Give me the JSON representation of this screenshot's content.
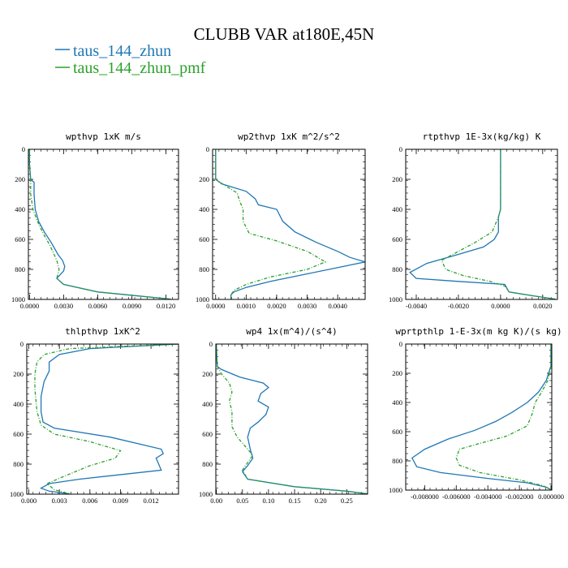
{
  "figure": {
    "title": "CLUBB VAR at180E,45N",
    "legend": [
      {
        "name": "taus_144_zhun",
        "color": "#1f77b4"
      },
      {
        "name": "taus_144_zhun_pmf",
        "color": "#2ca02c"
      }
    ]
  },
  "chart_data": [
    {
      "type": "line",
      "title": "wpthvp 1xK m/s",
      "xlim": [
        -0.0001,
        0.0131
      ],
      "ylim": [
        1000,
        0
      ],
      "xticks": [
        "0.0000",
        "0.0030",
        "0.0060",
        "0.0090",
        "0.0120"
      ],
      "xtick_values": [
        0.0,
        0.003,
        0.006,
        0.009,
        0.012
      ],
      "yticks": [
        "0",
        "200",
        "400",
        "600",
        "800",
        "1000"
      ],
      "ytick_values": [
        0,
        200,
        400,
        600,
        800,
        1000
      ],
      "series": [
        {
          "name": "taus_144_zhun",
          "color": "#1f77b4",
          "dash": "",
          "x": [
            0.0,
            0.0,
            0.0001,
            0.0004,
            0.0004,
            0.0005,
            0.0008,
            0.0013,
            0.0019,
            0.0025,
            0.0029,
            0.0031,
            0.003,
            0.0024,
            0.003,
            0.006,
            0.01,
            0.0124
          ],
          "y": [
            0,
            100,
            200,
            220,
            300,
            400,
            480,
            550,
            620,
            700,
            740,
            780,
            810,
            860,
            900,
            950,
            980,
            998
          ]
        },
        {
          "name": "taus_144_zhun_pmf",
          "color": "#2ca02c",
          "dash": "4 2 1 2",
          "x": [
            0.0,
            0.0,
            0.0001,
            0.0001,
            0.0003,
            0.0007,
            0.0012,
            0.0018,
            0.0024,
            0.0026,
            0.0024,
            0.003,
            0.006,
            0.01,
            0.0124
          ],
          "y": [
            0,
            100,
            200,
            300,
            400,
            480,
            560,
            640,
            740,
            800,
            860,
            900,
            950,
            980,
            998
          ]
        }
      ]
    },
    {
      "type": "line",
      "title": "wp2thvp 1xK m^2/s^2",
      "xlim": [
        -0.0001,
        0.0049
      ],
      "ylim": [
        1000,
        0
      ],
      "xticks": [
        "0.0000",
        "0.0010",
        "0.0020",
        "0.0030",
        "0.0040"
      ],
      "xtick_values": [
        0.0,
        0.001,
        0.002,
        0.003,
        0.004
      ],
      "yticks": [
        "0",
        "200",
        "400",
        "600",
        "800",
        "1000"
      ],
      "ytick_values": [
        0,
        200,
        400,
        600,
        800,
        1000
      ],
      "series": [
        {
          "name": "taus_144_zhun",
          "color": "#1f77b4",
          "dash": "",
          "x": [
            0.0,
            0.0,
            0.0,
            0.0002,
            0.001,
            0.0013,
            0.0014,
            0.002,
            0.0022,
            0.0026,
            0.0033,
            0.004,
            0.0044,
            0.0049,
            0.0042,
            0.003,
            0.0018,
            0.001,
            0.0006,
            0.0005,
            0.0005
          ],
          "y": [
            0,
            100,
            200,
            230,
            280,
            330,
            370,
            400,
            480,
            550,
            620,
            680,
            720,
            750,
            780,
            830,
            880,
            920,
            950,
            970,
            998
          ]
        },
        {
          "name": "taus_144_zhun_pmf",
          "color": "#2ca02c",
          "dash": "4 2 1 2",
          "x": [
            0.0,
            0.0,
            0.0,
            0.0003,
            0.0007,
            0.0008,
            0.0009,
            0.0009,
            0.0011,
            0.002,
            0.003,
            0.0036,
            0.003,
            0.0018,
            0.001,
            0.0006,
            0.0005,
            0.0005
          ],
          "y": [
            0,
            100,
            200,
            240,
            290,
            350,
            400,
            480,
            560,
            610,
            680,
            750,
            800,
            850,
            900,
            940,
            970,
            998
          ]
        }
      ]
    },
    {
      "type": "line",
      "title": "rtpthvp 1E-3x(kg/kg) K",
      "xlim": [
        -0.0045,
        0.0027
      ],
      "ylim": [
        1000,
        0
      ],
      "xticks": [
        "-0.0040",
        "-0.0020",
        "0.0000",
        "0.0020"
      ],
      "xtick_values": [
        -0.004,
        -0.002,
        0.0,
        0.002
      ],
      "yticks": [
        "0",
        "200",
        "400",
        "600",
        "800",
        "1000"
      ],
      "ytick_values": [
        0,
        200,
        400,
        600,
        800,
        1000
      ],
      "series": [
        {
          "name": "taus_144_zhun",
          "color": "#1f77b4",
          "dash": "",
          "x": [
            0.0,
            0.0,
            0.0,
            -0.0001,
            -0.0001,
            -0.0003,
            -0.0008,
            -0.002,
            -0.0035,
            -0.0043,
            -0.004,
            -0.002,
            0.0002,
            0.0004,
            0.0015,
            0.0026
          ],
          "y": [
            0,
            200,
            400,
            450,
            550,
            600,
            650,
            700,
            760,
            820,
            860,
            880,
            900,
            950,
            975,
            998
          ]
        },
        {
          "name": "taus_144_zhun_pmf",
          "color": "#2ca02c",
          "dash": "4 2 1 2",
          "x": [
            0.0,
            0.0,
            0.0,
            -0.0001,
            -0.0004,
            -0.0012,
            -0.002,
            -0.0028,
            -0.0026,
            -0.0018,
            -0.0005,
            0.0002,
            0.0004,
            0.0015,
            0.0026
          ],
          "y": [
            0,
            200,
            400,
            450,
            550,
            620,
            680,
            740,
            800,
            840,
            880,
            910,
            950,
            975,
            998
          ]
        }
      ]
    },
    {
      "type": "line",
      "title": "thlpthvp 1xK^2",
      "xlim": [
        -0.0002,
        0.0147
      ],
      "ylim": [
        1000,
        0
      ],
      "xticks": [
        "0.000",
        "0.003",
        "0.006",
        "0.009",
        "0.012"
      ],
      "xtick_values": [
        0.0,
        0.003,
        0.006,
        0.009,
        0.012
      ],
      "yticks": [
        "0",
        "200",
        "400",
        "600",
        "800",
        "1000"
      ],
      "ytick_values": [
        0,
        200,
        400,
        600,
        800,
        1000
      ],
      "series": [
        {
          "name": "taus_144_zhun",
          "color": "#1f77b4",
          "dash": "",
          "x": [
            0.0147,
            0.006,
            0.003,
            0.002,
            0.002,
            0.0015,
            0.0012,
            0.0012,
            0.0014,
            0.0025,
            0.008,
            0.013,
            0.0132,
            0.0125,
            0.013,
            0.005,
            0.002,
            0.0012,
            0.002,
            0.004
          ],
          "y": [
            0,
            30,
            70,
            120,
            180,
            250,
            350,
            450,
            520,
            560,
            620,
            700,
            730,
            760,
            840,
            900,
            930,
            960,
            980,
            998
          ]
        },
        {
          "name": "taus_144_zhun_pmf",
          "color": "#2ca02c",
          "dash": "4 2 1 2",
          "x": [
            0.0147,
            0.004,
            0.0015,
            0.0008,
            0.0006,
            0.0006,
            0.0008,
            0.0012,
            0.0025,
            0.006,
            0.009,
            0.0085,
            0.006,
            0.0035,
            0.0018,
            0.0025,
            0.004
          ],
          "y": [
            0,
            30,
            70,
            120,
            200,
            300,
            450,
            540,
            600,
            650,
            710,
            760,
            810,
            880,
            930,
            970,
            998
          ]
        }
      ]
    },
    {
      "type": "line",
      "title": "wp4 1x(m^4)/(s^4)",
      "xlim": [
        -0.001,
        0.29
      ],
      "ylim": [
        1000,
        0
      ],
      "xticks": [
        "0.00",
        "0.05",
        "0.10",
        "0.15",
        "0.20",
        "0.25"
      ],
      "xtick_values": [
        0.0,
        0.05,
        0.1,
        0.15,
        0.2,
        0.25
      ],
      "yticks": [
        "0",
        "200",
        "400",
        "600",
        "800",
        "1000"
      ],
      "ytick_values": [
        0,
        200,
        400,
        600,
        800,
        1000
      ],
      "series": [
        {
          "name": "taus_144_zhun",
          "color": "#1f77b4",
          "dash": "",
          "x": [
            0.0,
            0.001,
            0.002,
            0.01,
            0.045,
            0.09,
            0.1,
            0.085,
            0.08,
            0.1,
            0.095,
            0.08,
            0.065,
            0.06,
            0.065,
            0.07,
            0.06,
            0.05,
            0.06,
            0.15,
            0.25,
            0.29
          ],
          "y": [
            0,
            100,
            150,
            170,
            220,
            260,
            290,
            330,
            380,
            420,
            470,
            520,
            560,
            620,
            700,
            760,
            810,
            850,
            900,
            950,
            980,
            998
          ]
        },
        {
          "name": "taus_144_zhun_pmf",
          "color": "#2ca02c",
          "dash": "4 2 1 2",
          "x": [
            0.0,
            0.001,
            0.002,
            0.01,
            0.025,
            0.03,
            0.025,
            0.03,
            0.03,
            0.04,
            0.055,
            0.07,
            0.06,
            0.05,
            0.06,
            0.15,
            0.25,
            0.29
          ],
          "y": [
            0,
            100,
            150,
            200,
            260,
            320,
            380,
            450,
            550,
            620,
            680,
            740,
            790,
            840,
            900,
            950,
            980,
            998
          ]
        }
      ]
    },
    {
      "type": "line",
      "title": "wprtpthlp 1-E-3x(m kg K)/(s kg)",
      "xlim": [
        -0.0092,
        5e-05
      ],
      "ylim": [
        1000,
        0
      ],
      "xticks": [
        "-0.008000",
        "-0.006000",
        "-0.004000",
        "-0.002000",
        "0.000000"
      ],
      "xtick_values": [
        -0.008,
        -0.006,
        -0.004,
        -0.002,
        0.0
      ],
      "yticks": [
        "0",
        "200",
        "400",
        "600",
        "800",
        "1000"
      ],
      "ytick_values": [
        0,
        200,
        400,
        600,
        800,
        1000
      ],
      "series": [
        {
          "name": "taus_144_zhun",
          "color": "#1f77b4",
          "dash": "",
          "x": [
            0.0,
            0.0,
            -0.0003,
            -0.0008,
            -0.0015,
            -0.0025,
            -0.0035,
            -0.0048,
            -0.0065,
            -0.008,
            -0.0088,
            -0.0085,
            -0.007,
            -0.004,
            -0.0015,
            -0.0003,
            0.0
          ],
          "y": [
            0,
            150,
            250,
            330,
            400,
            470,
            530,
            590,
            650,
            720,
            780,
            840,
            880,
            920,
            950,
            980,
            998
          ]
        },
        {
          "name": "taus_144_zhun_pmf",
          "color": "#2ca02c",
          "dash": "4 2 1 2",
          "x": [
            0.0,
            0.0,
            -0.0002,
            -0.0006,
            -0.001,
            -0.0012,
            -0.0015,
            -0.0028,
            -0.0045,
            -0.0058,
            -0.006,
            -0.0058,
            -0.0045,
            -0.002,
            -0.0005,
            0.0
          ],
          "y": [
            0,
            150,
            250,
            330,
            400,
            480,
            560,
            630,
            680,
            720,
            780,
            830,
            880,
            930,
            970,
            998
          ]
        }
      ]
    }
  ]
}
